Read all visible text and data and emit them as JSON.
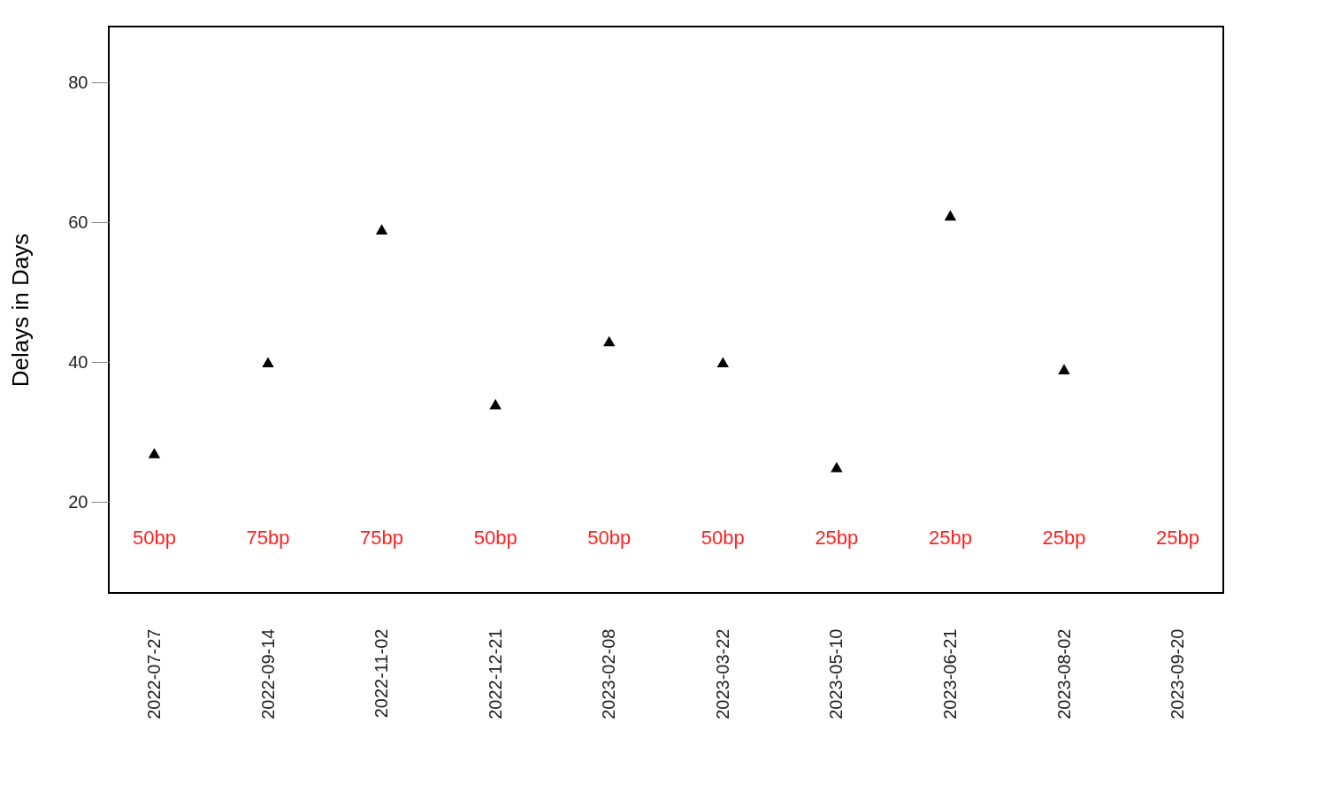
{
  "chart_data": {
    "type": "scatter",
    "ylabel": "Delays in Days",
    "categories": [
      "2022-07-27",
      "2022-09-14",
      "2022-11-02",
      "2022-12-21",
      "2023-02-08",
      "2023-03-22",
      "2023-05-10",
      "2023-06-21",
      "2023-08-02",
      "2023-09-20"
    ],
    "series": [
      {
        "color": "#000000",
        "values": [
          27,
          40,
          59,
          34,
          43,
          40,
          25,
          61,
          39,
          null
        ]
      }
    ],
    "ylim": [
      7,
      88
    ],
    "yticks": [
      20,
      40,
      60,
      80
    ],
    "marker": "triangle",
    "grid": false,
    "legend": false,
    "annotations": [
      "50bp",
      "75bp",
      "75bp",
      "50bp",
      "50bp",
      "50bp",
      "25bp",
      "25bp",
      "25bp",
      "25bp"
    ]
  }
}
